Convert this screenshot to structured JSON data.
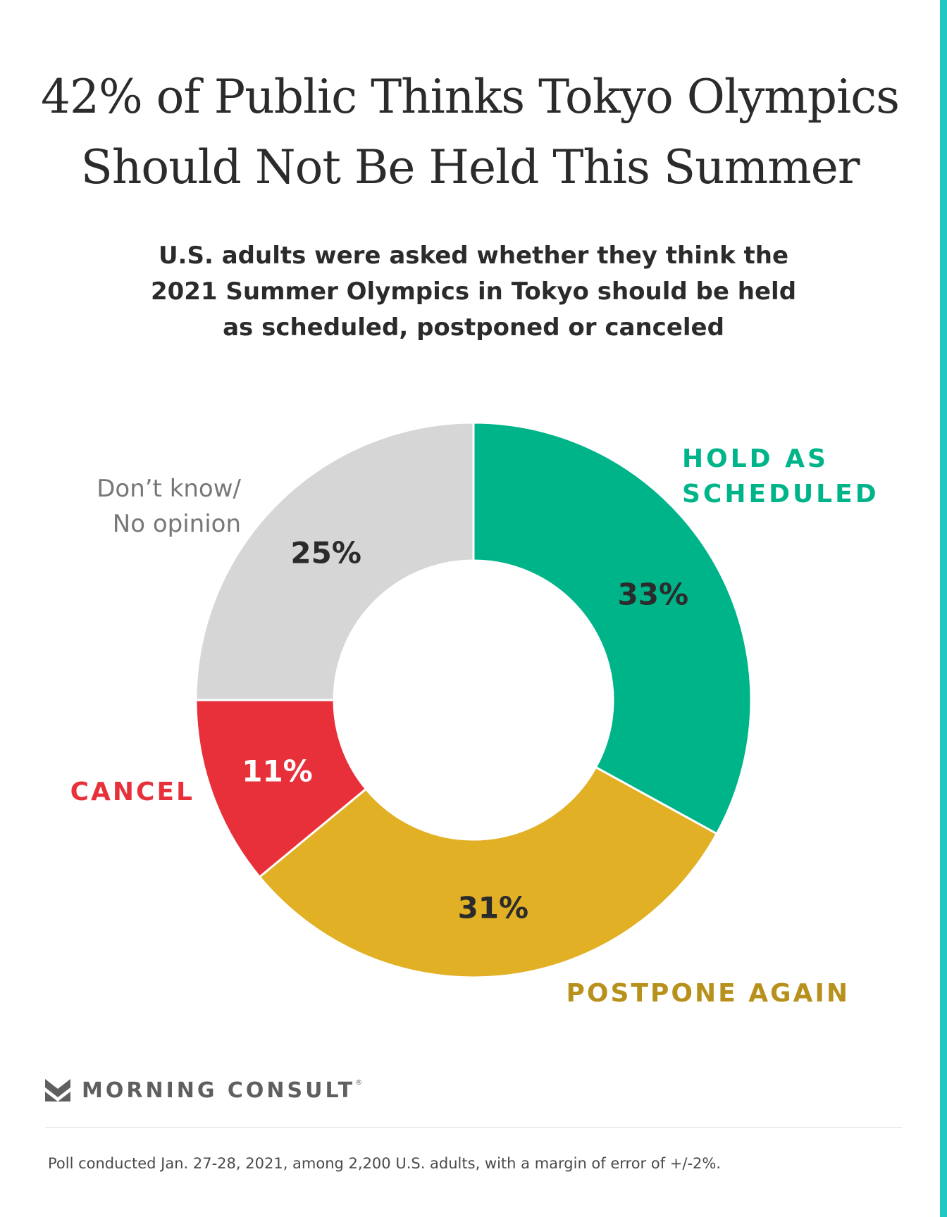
{
  "title_lines": [
    "42% of Public Thinks Tokyo Olympics",
    "Should Not Be Held This Summer"
  ],
  "subtitle_lines": [
    "U.S. adults were asked whether they think the",
    "2021 Summer Olympics in Tokyo should be held",
    "as scheduled, postponed or canceled"
  ],
  "chart_data": {
    "type": "pie",
    "style": "donut",
    "title": "42% of Public Thinks Tokyo Olympics Should Not Be Held This Summer",
    "subtitle": "U.S. adults were asked whether they think the 2021 Summer Olympics in Tokyo should be held as scheduled, postponed or canceled",
    "slices": [
      {
        "label": "HOLD AS SCHEDULED",
        "label_lines": [
          "HOLD AS",
          "SCHEDULED"
        ],
        "value": 33,
        "value_label": "33%",
        "color": "#00b48a",
        "label_color": "#00b48a",
        "value_color": "#2b2b2b"
      },
      {
        "label": "POSTPONE AGAIN",
        "label_lines": [
          "POSTPONE AGAIN"
        ],
        "value": 31,
        "value_label": "31%",
        "color": "#e2b025",
        "label_color": "#b8901c",
        "value_color": "#2b2b2b"
      },
      {
        "label": "CANCEL",
        "label_lines": [
          "CANCEL"
        ],
        "value": 11,
        "value_label": "11%",
        "color": "#e8303a",
        "label_color": "#e8303a",
        "value_color": "#ffffff"
      },
      {
        "label": "Don’t know/ No opinion",
        "label_lines": [
          "Don’t know/",
          "No opinion"
        ],
        "value": 25,
        "value_label": "25%",
        "color": "#d6d6d6",
        "label_color": "#777777",
        "value_color": "#2b2b2b"
      }
    ]
  },
  "brand": {
    "name": "MORNING CONSULT",
    "reg": "®",
    "logo_icon": "morning-consult-logo-icon",
    "logo_color": "#5f5f5f"
  },
  "footnote": "Poll conducted Jan. 27-28, 2021, among 2,200 U.S. adults, with a margin of error of +/-2%.",
  "colors": {
    "accent_bar": "#20c7c3",
    "text_dark": "#2b2b2b"
  }
}
